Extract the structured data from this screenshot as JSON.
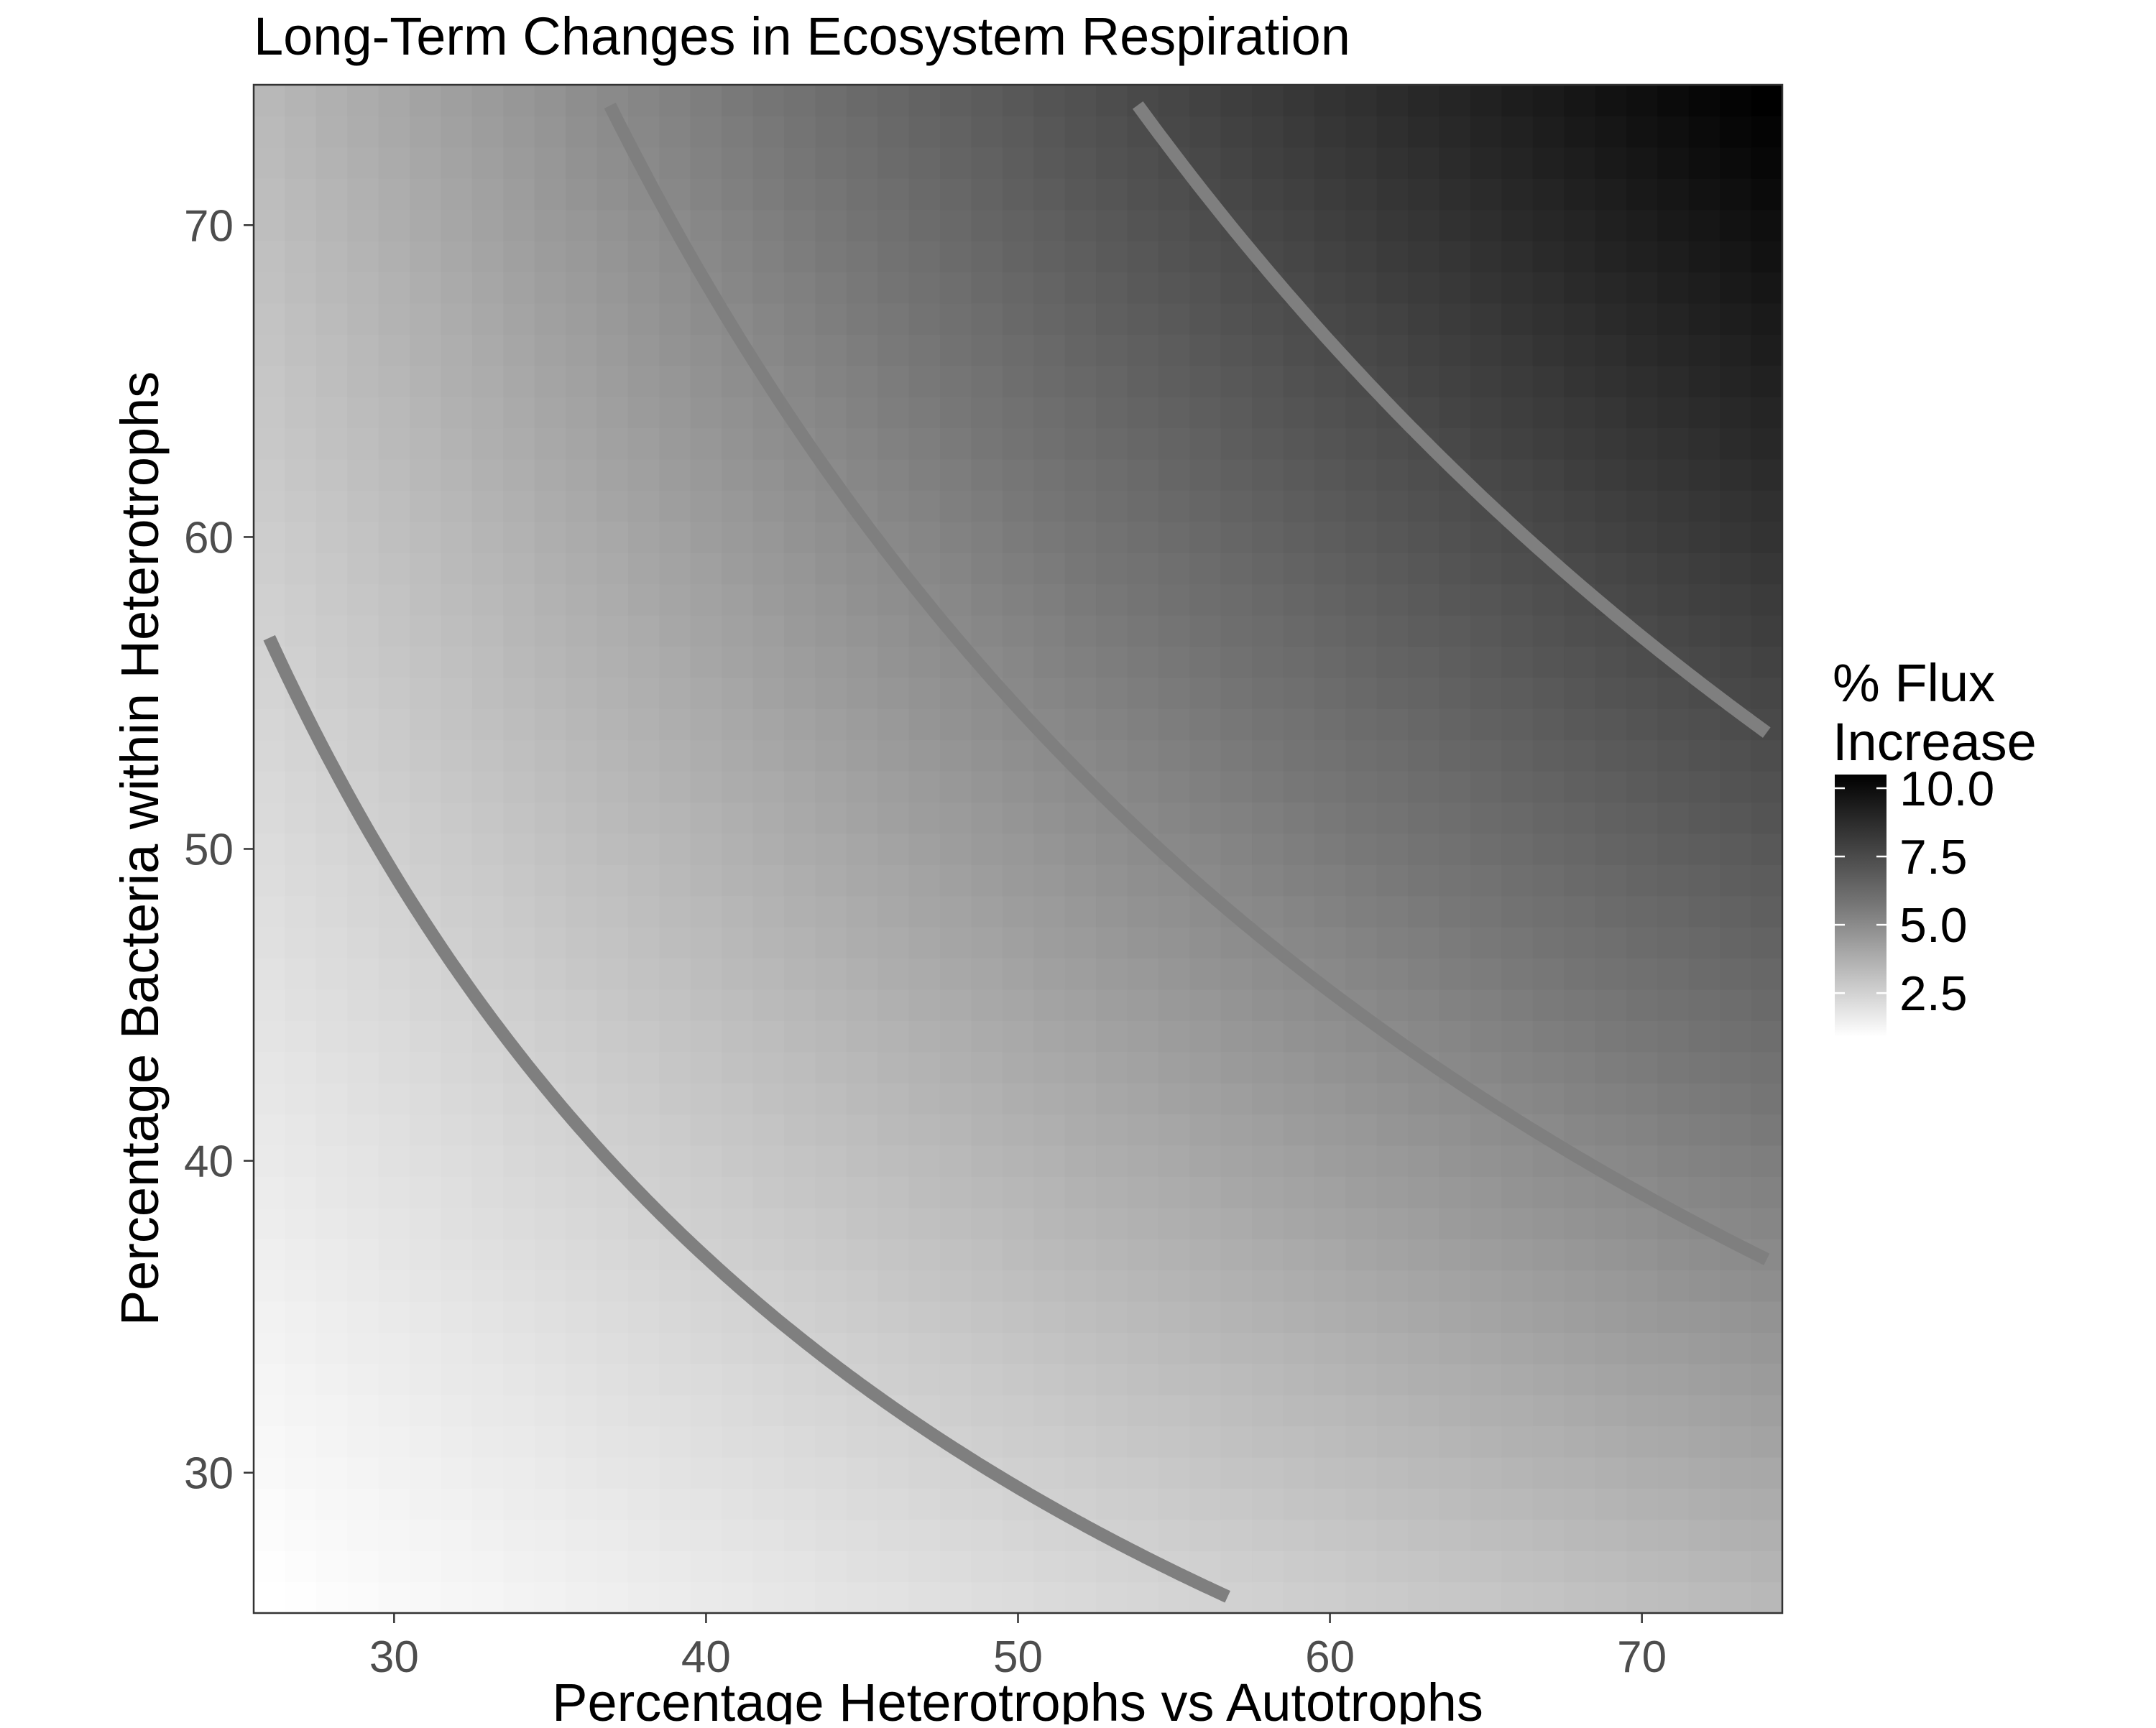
{
  "chart_data": {
    "type": "heatmap",
    "title": "Long-Term Changes in Ecosystem Respiration",
    "xlabel": "Percentage Heterotrophs vs Autotrophs",
    "ylabel": "Percentage Bacteria within Heterotrophs",
    "xlim": [
      25.5,
      74.5
    ],
    "ylim": [
      25.5,
      74.5
    ],
    "x_ticks": [
      30,
      40,
      50,
      60,
      70
    ],
    "y_ticks": [
      30,
      40,
      50,
      60,
      70
    ],
    "grid": [
      26,
      74
    ],
    "fill": {
      "model": "value proportional to x * y",
      "range": [
        0.9,
        10.5
      ],
      "low_color": "#ffffff",
      "high_color": "#000000"
    },
    "contours": [
      {
        "level": 2.5,
        "color": "#7f7f7f"
      },
      {
        "level": 5.0,
        "color": "#7f7f7f"
      },
      {
        "level": 7.5,
        "color": "#7f7f7f"
      }
    ],
    "legend": {
      "title_lines": [
        "% Flux",
        "Increase"
      ],
      "ticks": [
        "10.0",
        "7.5",
        "5.0",
        "2.5"
      ],
      "tick_values": [
        10.0,
        7.5,
        5.0,
        2.5
      ],
      "placement": "right"
    }
  }
}
